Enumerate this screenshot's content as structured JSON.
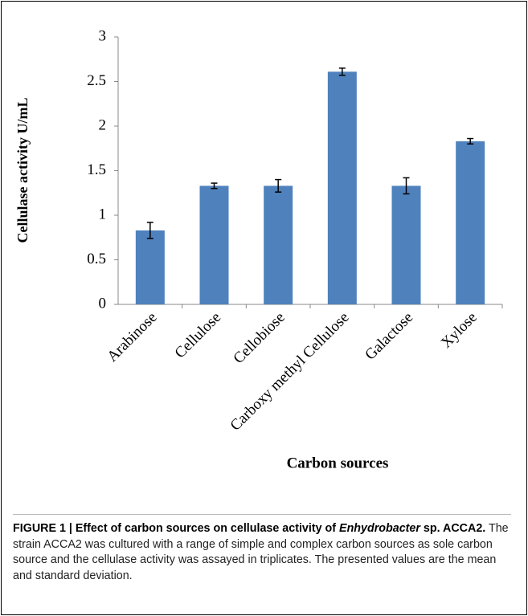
{
  "chart_data": {
    "type": "bar",
    "y_label": "Cellulase activity U/mL",
    "x_label": "Carbon sources",
    "categories": [
      "Arabinose",
      "Cellulose",
      "Cellobiose",
      "Carboxy methyl Cellulose",
      "Galactose",
      "Xylose"
    ],
    "values": [
      0.83,
      1.33,
      1.33,
      2.61,
      1.33,
      1.83
    ],
    "errors": [
      0.09,
      0.03,
      0.07,
      0.04,
      0.09,
      0.03
    ],
    "color": "#4f81bd",
    "ylim": [
      0,
      3
    ],
    "yticks": [
      0,
      0.5,
      1,
      1.5,
      2,
      2.5,
      3
    ],
    "grid": false
  },
  "caption": {
    "title_start": "FIGURE 1 | Effect of carbon sources on cellulase activity of",
    "title_italic": "Enhydrobacter",
    "title_end": "sp. ACCA2.",
    "text": "The strain ACCA2 was cultured with a range of simple and complex carbon sources as sole carbon source and the cellulase activity was assayed in triplicates. The presented values are the mean and standard deviation."
  }
}
